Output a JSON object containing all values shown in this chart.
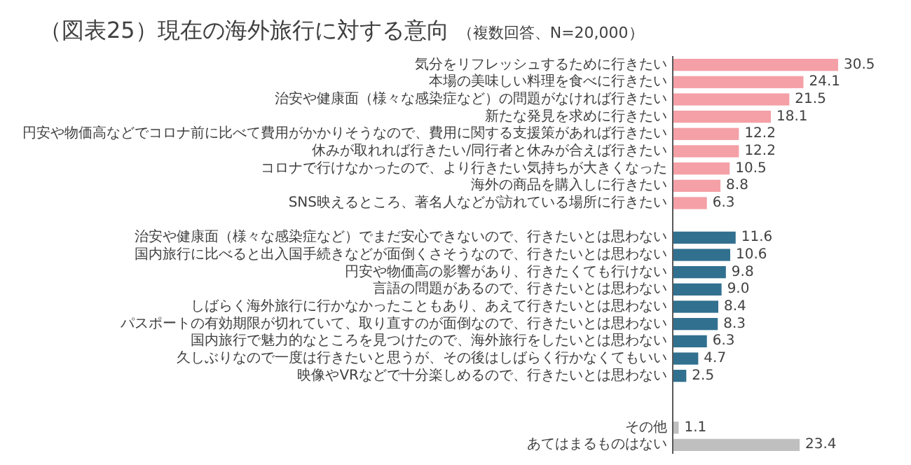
{
  "chart_data": {
    "type": "bar",
    "orientation": "horizontal",
    "title": "（図表25）現在の海外旅行に対する意向",
    "subtitle": "（複数回答、N=20,000）",
    "value_labels": [
      "30.5",
      "24.1",
      "21.5",
      "18.1",
      "12.2",
      "12.2",
      "10.5",
      "8.8",
      "6.3",
      null,
      "11.6",
      "10.6",
      "9.8",
      "9.0",
      "8.4",
      "8.3",
      "6.3",
      "4.7",
      "2.5",
      null,
      null,
      "1.1",
      "23.4"
    ],
    "categories": [
      "気分をリフレッシュするために行きたい",
      "本場の美味しい料理を食べに行きたい",
      "治安や健康面（様々な感染症など）の問題がなければ行きたい",
      "新たな発見を求めに行きたい",
      "円安や物価高などでコロナ前に比べて費用がかかりそうなので、費用に関する支援策があれば行きたい",
      "休みが取れれば行きたい/同行者と休みが合えば行きたい",
      "コロナで行けなかったので、より行きたい気持ちが大きくなった",
      "海外の商品を購入しに行きたい",
      "SNS映えるところ、著名人などが訪れている場所に行きたい",
      null,
      "治安や健康面（様々な感染症など）でまだ安心できないので、行きたいとは思わない",
      "国内旅行に比べると出入国手続きなどが面倒くさそうなので、行きたいとは思わない",
      "円安や物価高の影響があり、行きたくても行けない",
      "言語の問題があるので、行きたいとは思わない",
      "しばらく海外旅行に行かなかったこともあり、あえて行きたいとは思わない",
      "パスポートの有効期限が切れていて、取り直すのが面倒なので、行きたいとは思わない",
      "国内旅行で魅力的なところを見つけたので、海外旅行をしたいとは思わない",
      "久しぶりなので一度は行きたいと思うが、その後はしばらく行かなくてもいい",
      "映像やVRなどで十分楽しめるので、行きたいとは思わない",
      null,
      null,
      "その他",
      "あてはまるものはない"
    ],
    "values": [
      30.5,
      24.1,
      21.5,
      18.1,
      12.2,
      12.2,
      10.5,
      8.8,
      6.3,
      null,
      11.6,
      10.6,
      9.8,
      9.0,
      8.4,
      8.3,
      6.3,
      4.7,
      2.5,
      null,
      null,
      1.1,
      23.4
    ],
    "colors": [
      "#f4a0a6",
      "#f4a0a6",
      "#f4a0a6",
      "#f4a0a6",
      "#f4a0a6",
      "#f4a0a6",
      "#f4a0a6",
      "#f4a0a6",
      "#f4a0a6",
      null,
      "#31708f",
      "#31708f",
      "#31708f",
      "#31708f",
      "#31708f",
      "#31708f",
      "#31708f",
      "#31708f",
      "#31708f",
      null,
      null,
      "#bfbfbf",
      "#bfbfbf"
    ]
  }
}
